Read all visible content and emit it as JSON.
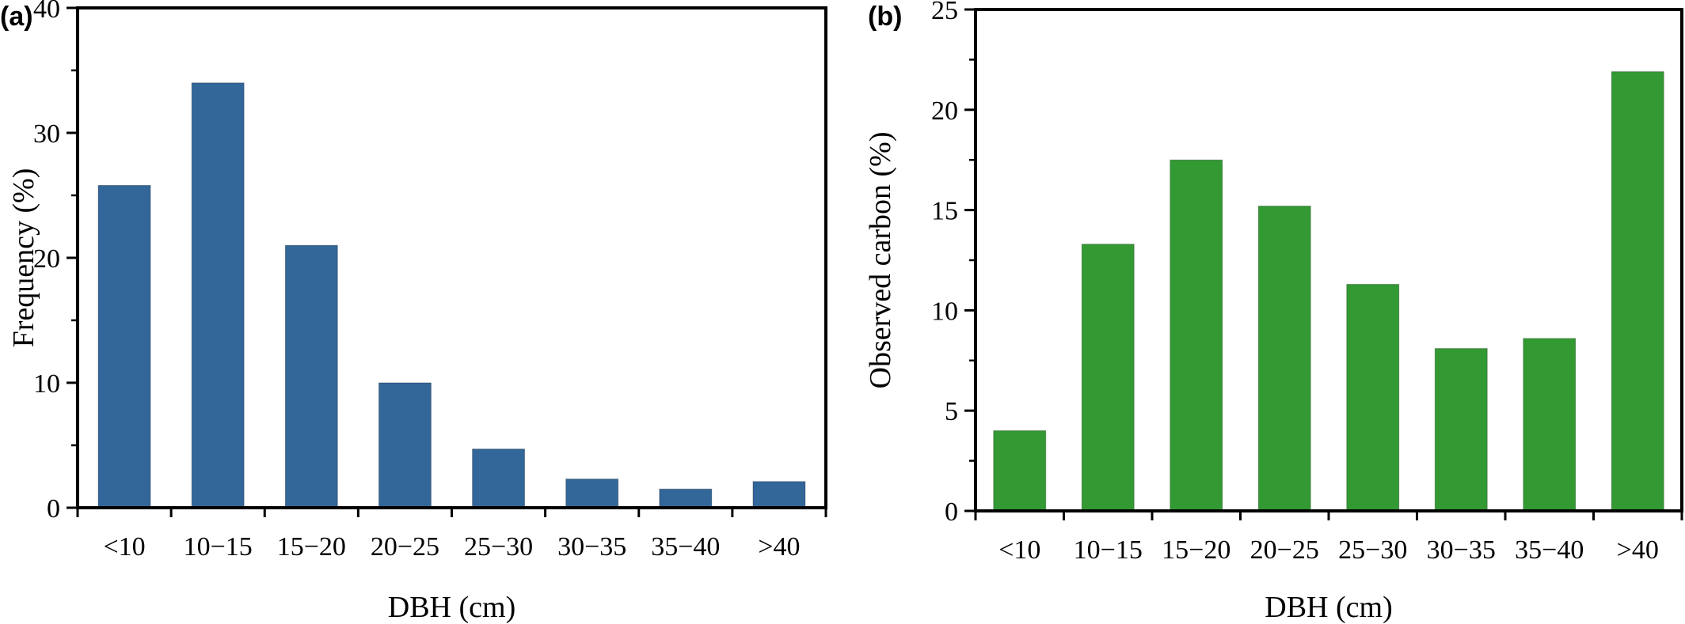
{
  "chart_data": [
    {
      "type": "bar",
      "panel_label": "(a)",
      "categories": [
        "<10",
        "10−15",
        "15−20",
        "20−25",
        "25−30",
        "30−35",
        "35−40",
        ">40"
      ],
      "values": [
        25.8,
        34.0,
        21.0,
        10.0,
        4.7,
        2.3,
        1.5,
        2.1
      ],
      "xlabel": "DBH (cm)",
      "ylabel": "Frequency (%)",
      "ylim": [
        0,
        40
      ],
      "yticks": [
        0,
        10,
        20,
        30,
        40
      ],
      "ytick_labels": [
        "0",
        "10",
        "20",
        "30",
        "40"
      ],
      "grid": false,
      "color": "#336699"
    },
    {
      "type": "bar",
      "panel_label": "(b)",
      "categories": [
        "<10",
        "10−15",
        "15−20",
        "20−25",
        "25−30",
        "30−35",
        "35−40",
        ">40"
      ],
      "values": [
        4.0,
        13.3,
        17.5,
        15.2,
        11.3,
        8.1,
        8.6,
        21.9
      ],
      "xlabel": "DBH (cm)",
      "ylabel": "Observed carbon (%)",
      "ylim": [
        0,
        25
      ],
      "yticks": [
        0,
        5,
        10,
        15,
        20,
        25
      ],
      "ytick_labels": [
        "0",
        "5",
        "10",
        "15",
        "20",
        "25"
      ],
      "grid": false,
      "color": "#339933"
    }
  ]
}
